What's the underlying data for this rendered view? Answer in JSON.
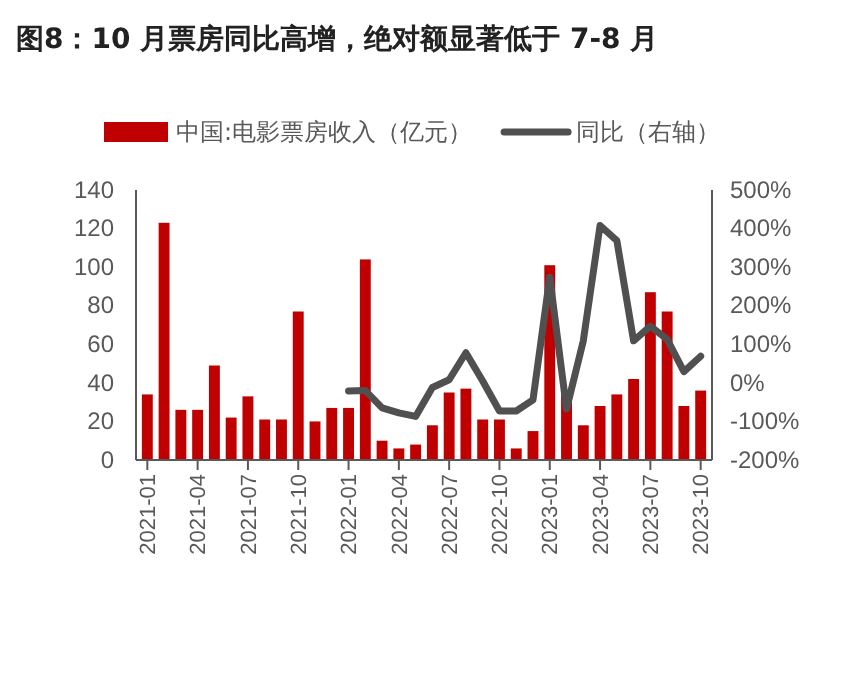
{
  "chart_data": {
    "type": "bar",
    "title": "图8：10 月票房同比高增，绝对额显著低于 7-8 月",
    "categories": [
      "2021-01",
      null,
      null,
      "2021-04",
      null,
      null,
      "2021-07",
      null,
      null,
      "2021-10",
      null,
      null,
      "2022-01",
      null,
      null,
      "2022-04",
      null,
      null,
      "2022-07",
      null,
      null,
      "2022-10",
      null,
      null,
      "2023-01",
      null,
      null,
      "2023-04",
      null,
      null,
      "2023-07",
      null,
      null,
      "2023-10"
    ],
    "series": [
      {
        "name": "中国:电影票房收入（亿元）",
        "color": "#c00000",
        "values": [
          34,
          123,
          26,
          26,
          49,
          22,
          33,
          21,
          21,
          77,
          20,
          27,
          27,
          104,
          10,
          6,
          8,
          18,
          35,
          37,
          21,
          21,
          6,
          15,
          101,
          35,
          18,
          28,
          34,
          42,
          87,
          77,
          28,
          36
        ]
      },
      {
        "name": "同比（右轴）",
        "type": "line",
        "axis": "y2",
        "color": "#505050",
        "values": [
          null,
          null,
          null,
          null,
          null,
          null,
          null,
          null,
          null,
          null,
          null,
          null,
          -21,
          -20,
          -65,
          -78,
          -87,
          -12,
          8,
          78,
          5,
          -73,
          -73,
          -44,
          274,
          -68,
          109,
          408,
          369,
          109,
          147,
          113,
          29,
          69
        ]
      }
    ],
    "ylim": [
      0,
      140
    ],
    "yticks": [
      0,
      20,
      40,
      60,
      80,
      100,
      120,
      140
    ],
    "y2lim": [
      -200,
      500
    ],
    "y2ticks": [
      {
        "value": -200,
        "label": "-200%"
      },
      {
        "value": -100,
        "label": "-100%"
      },
      {
        "value": 0,
        "label": "0%"
      },
      {
        "value": 100,
        "label": "100%"
      },
      {
        "value": 200,
        "label": "200%"
      },
      {
        "value": 300,
        "label": "300%"
      },
      {
        "value": 400,
        "label": "400%"
      },
      {
        "value": 500,
        "label": "500%"
      }
    ],
    "legend": "top",
    "grid": false
  }
}
